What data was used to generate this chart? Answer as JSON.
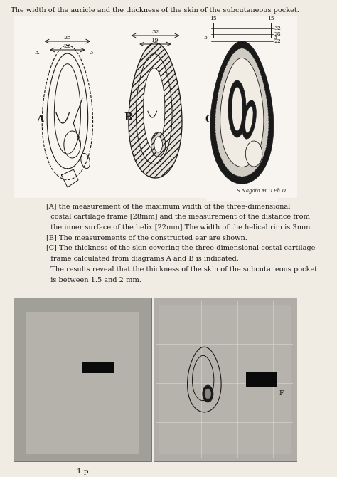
{
  "title": "The width of the auricle and the thickness of the skin of the subcutaneous pocket.",
  "bg_color": "#f0ece4",
  "diagram_bg": "#ffffff",
  "text_color": "#1a1a1a",
  "caption_lines": [
    "[A] the measurement of the maximum width of the three-dimensional",
    "  costal cartilage frame [28mm] and the measurement of the distance from",
    "  the inner surface of the helix [22mm].The width of the helical rim is 3mm.",
    "[B] The measurements of the constructed ear are shown.",
    "[C] The thickness of the skin covering the three-dimensional costal cartilage",
    "  frame calculated from diagrams A and B is indicated.",
    "  The results reveal that the thickness of the skin of the subcutaneous pocket",
    "  is between 1.5 and 2 mm."
  ],
  "page_label": "1 p",
  "signature": "S.Nagata M.D.Ph.D",
  "photo_bg_left": "#a0a098",
  "photo_bg_right": "#b0aca8"
}
